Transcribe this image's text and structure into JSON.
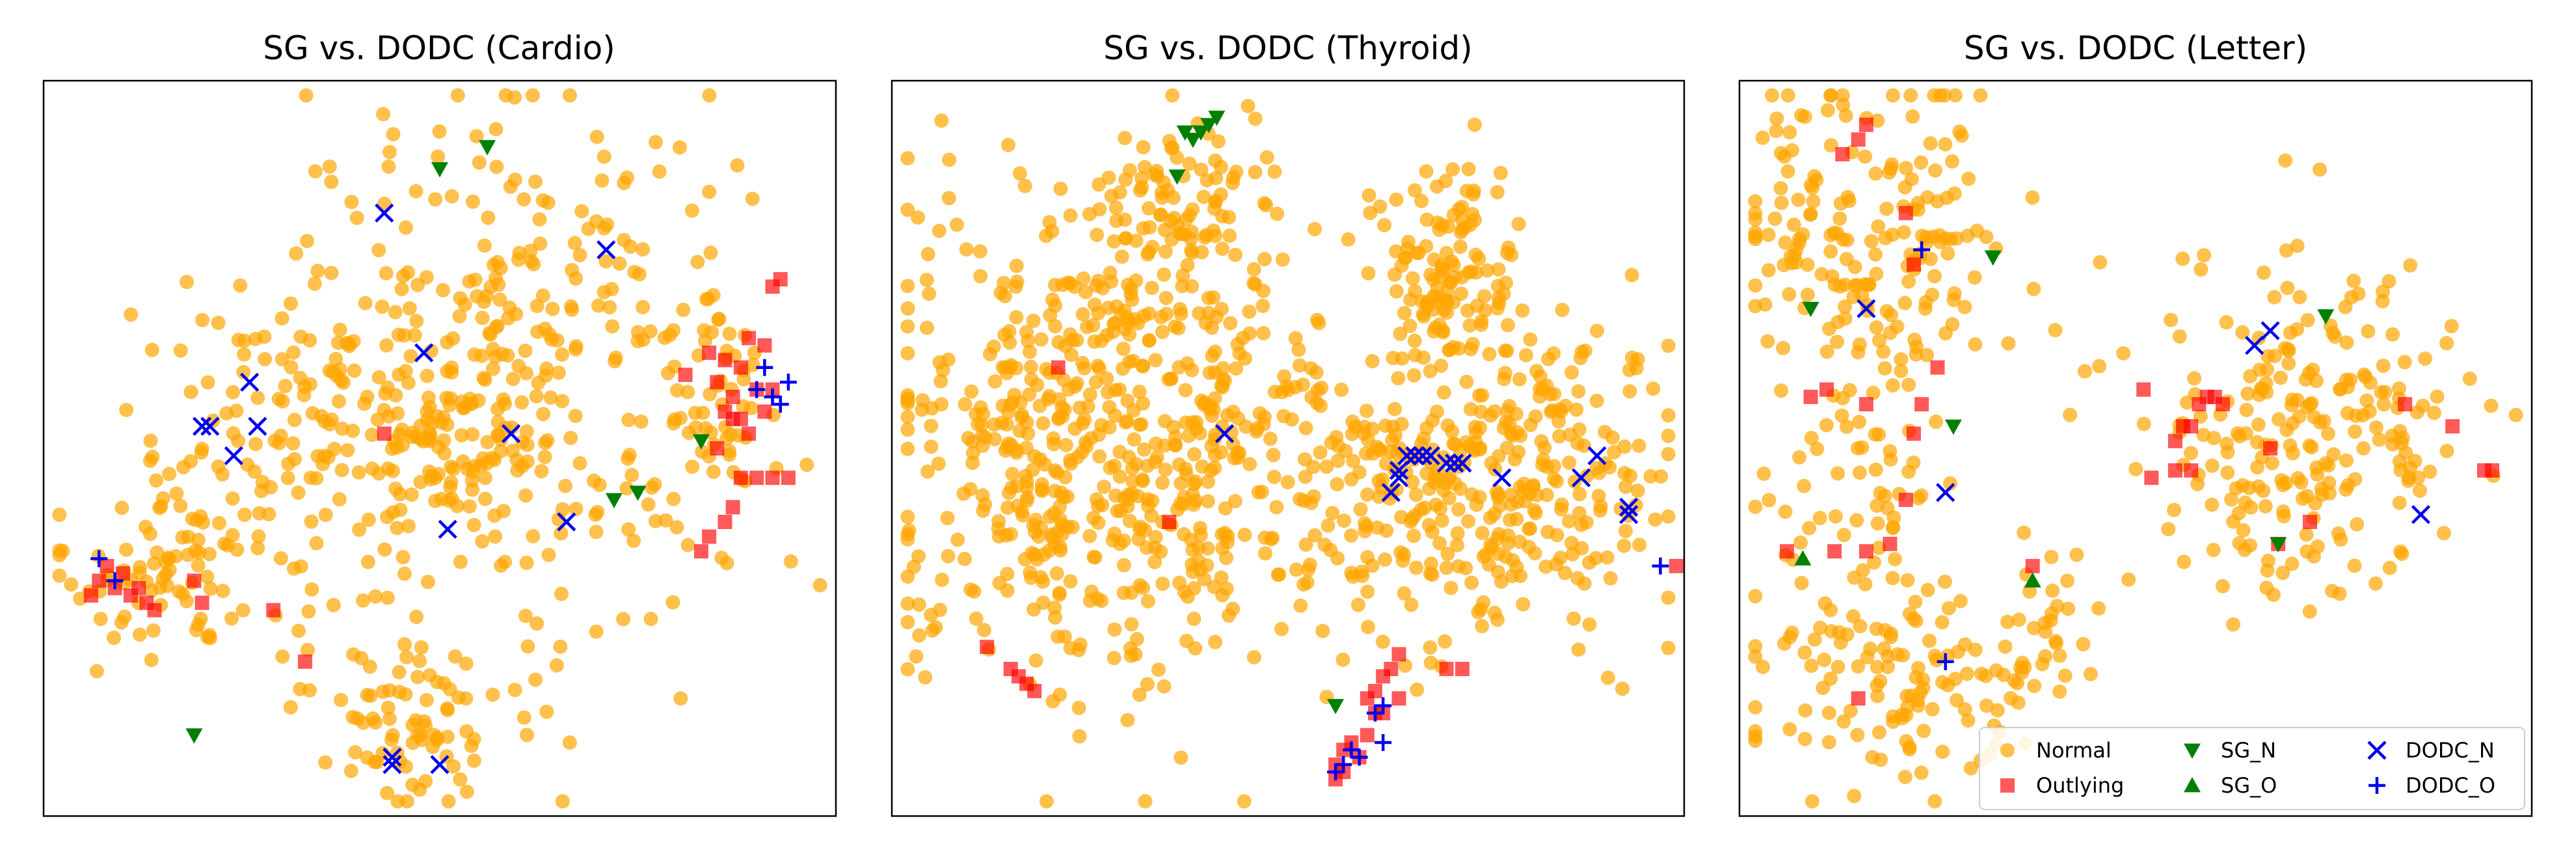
{
  "figure": {
    "marker_colors": {
      "normal": "#FFA500",
      "outlying": "#FF0000",
      "sg": "#008000",
      "dodc": "#0000EE"
    },
    "legend_location": "lower-right of third panel",
    "legend_entries": [
      {
        "key": "normal",
        "label": "Normal",
        "marker": "circle"
      },
      {
        "key": "outlying",
        "label": "Outlying",
        "marker": "square"
      },
      {
        "key": "sg_n",
        "label": "SG_N",
        "marker": "triangle-down"
      },
      {
        "key": "sg_o",
        "label": "SG_O",
        "marker": "triangle-up"
      },
      {
        "key": "dodc_n",
        "label": "DODC_N",
        "marker": "x"
      },
      {
        "key": "dodc_o",
        "label": "DODC_O",
        "marker": "plus"
      }
    ]
  },
  "chart_data": [
    {
      "type": "scatter",
      "title": "SG vs. DODC (Cardio)",
      "xlabel": "",
      "ylabel": "",
      "xlim": [
        0,
        100
      ],
      "ylim": [
        0,
        100
      ],
      "axis_ticks": "hidden",
      "grid": false,
      "normal_clusters": [
        {
          "cx": 60,
          "cy": 62,
          "sx": 14,
          "sy": 17,
          "n": 330
        },
        {
          "cx": 30,
          "cy": 50,
          "sx": 10,
          "sy": 11,
          "n": 130
        },
        {
          "cx": 15,
          "cy": 33,
          "sx": 7,
          "sy": 6,
          "n": 70
        },
        {
          "cx": 45,
          "cy": 15,
          "sx": 7,
          "sy": 7,
          "n": 90
        },
        {
          "cx": 52,
          "cy": 50,
          "sx": 5,
          "sy": 5,
          "n": 40
        },
        {
          "cx": 85,
          "cy": 58,
          "sx": 4,
          "sy": 8,
          "n": 40
        }
      ],
      "series": {
        "outlying": [
          [
            8,
            34
          ],
          [
            7,
            32
          ],
          [
            9,
            31
          ],
          [
            11,
            30
          ],
          [
            13,
            29
          ],
          [
            6,
            30
          ],
          [
            10,
            33
          ],
          [
            12,
            31
          ],
          [
            14,
            28
          ],
          [
            19,
            32
          ],
          [
            20,
            29
          ],
          [
            29,
            28
          ],
          [
            33,
            21
          ],
          [
            43,
            52
          ],
          [
            81,
            60
          ],
          [
            84,
            63
          ],
          [
            86,
            62
          ],
          [
            88,
            61
          ],
          [
            85,
            59
          ],
          [
            87,
            57
          ],
          [
            86,
            55
          ],
          [
            88,
            54
          ],
          [
            90,
            58
          ],
          [
            92,
            58
          ],
          [
            91,
            55
          ],
          [
            89,
            52
          ],
          [
            87,
            54
          ],
          [
            85,
            50
          ],
          [
            88,
            46
          ],
          [
            90,
            46
          ],
          [
            92,
            46
          ],
          [
            94,
            46
          ],
          [
            87,
            42
          ],
          [
            86,
            40
          ],
          [
            84,
            38
          ],
          [
            83,
            36
          ],
          [
            92,
            72
          ],
          [
            93,
            73
          ],
          [
            89,
            65
          ],
          [
            91,
            64
          ]
        ],
        "sg_n": [
          [
            50,
            88
          ],
          [
            56,
            91
          ],
          [
            19,
            11
          ],
          [
            83,
            51
          ],
          [
            72,
            43
          ],
          [
            75,
            44
          ]
        ],
        "sg_o": [],
        "dodc_n": [
          [
            43,
            82
          ],
          [
            71,
            77
          ],
          [
            48,
            63
          ],
          [
            26,
            59
          ],
          [
            20,
            53
          ],
          [
            21,
            53
          ],
          [
            27,
            53
          ],
          [
            24,
            49
          ],
          [
            59,
            52
          ],
          [
            51,
            39
          ],
          [
            66,
            40
          ],
          [
            44,
            8
          ],
          [
            44,
            7
          ],
          [
            50,
            7
          ]
        ],
        "dodc_o": [
          [
            7,
            35
          ],
          [
            9,
            32
          ],
          [
            90,
            58
          ],
          [
            92,
            57
          ],
          [
            93,
            56
          ],
          [
            91,
            61
          ],
          [
            94,
            59
          ]
        ]
      }
    },
    {
      "type": "scatter",
      "title": "SG vs. DODC (Thyroid)",
      "xlabel": "",
      "ylabel": "",
      "xlim": [
        0,
        100
      ],
      "ylim": [
        0,
        100
      ],
      "axis_ticks": "hidden",
      "grid": false,
      "normal_clusters": [
        {
          "cx": 27,
          "cy": 52,
          "sx": 14,
          "sy": 17,
          "n": 650
        },
        {
          "cx": 37,
          "cy": 84,
          "sx": 5,
          "sy": 5,
          "n": 60
        },
        {
          "cx": 70,
          "cy": 75,
          "sx": 4,
          "sy": 7,
          "n": 110
        },
        {
          "cx": 82,
          "cy": 47,
          "sx": 9,
          "sy": 10,
          "n": 230
        },
        {
          "cx": 62,
          "cy": 45,
          "sx": 8,
          "sy": 12,
          "n": 160
        }
      ],
      "series": {
        "outlying": [
          [
            21,
            61
          ],
          [
            35,
            40
          ],
          [
            12,
            23
          ],
          [
            16,
            19
          ],
          [
            17,
            18
          ],
          [
            18,
            17
          ],
          [
            15,
            20
          ],
          [
            70,
            20
          ],
          [
            62,
            19
          ],
          [
            63,
            20
          ],
          [
            64,
            22
          ],
          [
            61,
            17
          ],
          [
            60,
            16
          ],
          [
            61,
            14
          ],
          [
            62,
            14
          ],
          [
            64,
            16
          ],
          [
            58,
            10
          ],
          [
            57,
            9
          ],
          [
            59,
            8
          ],
          [
            56,
            7
          ],
          [
            57,
            6
          ],
          [
            56,
            5
          ],
          [
            60,
            11
          ],
          [
            72,
            20
          ],
          [
            99,
            34
          ]
        ],
        "sg_n": [
          [
            36,
            87
          ],
          [
            37,
            93
          ],
          [
            39,
            93
          ],
          [
            40,
            94
          ],
          [
            41,
            95
          ],
          [
            38,
            92
          ],
          [
            56,
            15
          ]
        ],
        "sg_o": [],
        "dodc_n": [
          [
            42,
            52
          ],
          [
            64,
            47
          ],
          [
            65,
            49
          ],
          [
            66,
            49
          ],
          [
            67,
            49
          ],
          [
            68,
            49
          ],
          [
            70,
            48
          ],
          [
            71,
            48
          ],
          [
            72,
            48
          ],
          [
            64,
            46
          ],
          [
            63,
            44
          ],
          [
            77,
            46
          ],
          [
            87,
            46
          ],
          [
            89,
            49
          ],
          [
            93,
            42
          ],
          [
            93,
            41
          ]
        ],
        "dodc_o": [
          [
            62,
            15
          ],
          [
            61,
            14
          ],
          [
            62,
            10
          ],
          [
            59,
            8
          ],
          [
            58,
            9
          ],
          [
            57,
            7
          ],
          [
            56,
            6
          ],
          [
            97,
            34
          ]
        ]
      }
    },
    {
      "type": "scatter",
      "title": "SG vs. DODC (Letter)",
      "xlabel": "",
      "ylabel": "",
      "xlim": [
        0,
        100
      ],
      "ylim": [
        0,
        100
      ],
      "axis_ticks": "hidden",
      "grid": false,
      "normal_clusters": [
        {
          "cx": 17,
          "cy": 78,
          "sx": 9,
          "sy": 12,
          "n": 200
        },
        {
          "cx": 15,
          "cy": 44,
          "sx": 6,
          "sy": 6,
          "n": 40
        },
        {
          "cx": 20,
          "cy": 19,
          "sx": 9,
          "sy": 8,
          "n": 130
        },
        {
          "cx": 71,
          "cy": 53,
          "sx": 10,
          "sy": 11,
          "n": 230
        },
        {
          "cx": 38,
          "cy": 24,
          "sx": 3,
          "sy": 5,
          "n": 30
        }
      ],
      "series": {
        "outlying": [
          [
            15,
            92
          ],
          [
            16,
            94
          ],
          [
            13,
            90
          ],
          [
            21,
            82
          ],
          [
            22,
            75
          ],
          [
            9,
            57
          ],
          [
            11,
            58
          ],
          [
            25,
            61
          ],
          [
            23,
            56
          ],
          [
            22,
            52
          ],
          [
            16,
            56
          ],
          [
            21,
            43
          ],
          [
            19,
            37
          ],
          [
            16,
            36
          ],
          [
            6,
            36
          ],
          [
            12,
            36
          ],
          [
            37,
            34
          ],
          [
            15,
            16
          ],
          [
            51,
            58
          ],
          [
            58,
            56
          ],
          [
            59,
            57
          ],
          [
            60,
            57
          ],
          [
            61,
            56
          ],
          [
            57,
            53
          ],
          [
            56,
            53
          ],
          [
            55,
            51
          ],
          [
            57,
            47
          ],
          [
            52,
            46
          ],
          [
            55,
            47
          ],
          [
            67,
            50
          ],
          [
            84,
            56
          ],
          [
            90,
            53
          ],
          [
            95,
            47
          ],
          [
            94,
            47
          ],
          [
            72,
            40
          ],
          [
            68,
            37
          ]
        ],
        "sg_n": [
          [
            32,
            76
          ],
          [
            9,
            69
          ],
          [
            27,
            53
          ],
          [
            74,
            68
          ],
          [
            68,
            37
          ]
        ],
        "sg_o": [
          [
            8,
            35
          ],
          [
            37,
            32
          ]
        ],
        "dodc_n": [
          [
            16,
            69
          ],
          [
            65,
            64
          ],
          [
            67,
            66
          ],
          [
            26,
            44
          ],
          [
            86,
            41
          ]
        ],
        "dodc_o": [
          [
            23,
            77
          ],
          [
            26,
            21
          ]
        ]
      }
    }
  ]
}
